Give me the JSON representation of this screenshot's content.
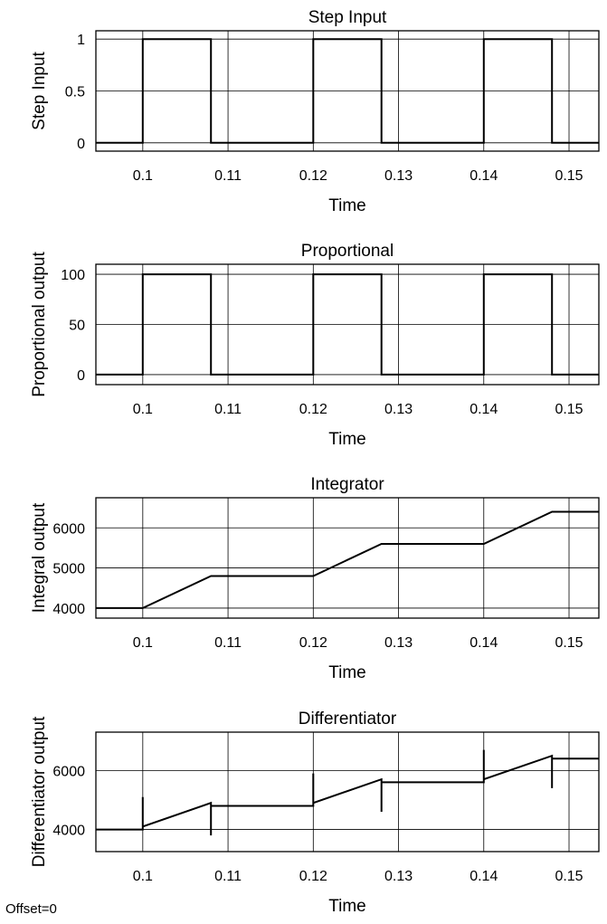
{
  "footnote": "Offset=0",
  "chart_data": [
    {
      "type": "line",
      "title": "Step Input",
      "xlabel": "Time",
      "ylabel": "Step Input",
      "xlim": [
        0.0945,
        0.1535
      ],
      "ylim": [
        -0.08,
        1.08
      ],
      "xticks": [
        0.1,
        0.11,
        0.12,
        0.13,
        0.14,
        0.15
      ],
      "xtick_labels": [
        "0.1",
        "0.11",
        "0.12",
        "0.13",
        "0.14",
        "0.15"
      ],
      "yticks": [
        0,
        0.5,
        1
      ],
      "ytick_labels": [
        "0",
        "0.5",
        "1"
      ],
      "grid": true,
      "series": [
        {
          "x": [
            0.0945,
            0.1,
            0.1,
            0.108,
            0.108,
            0.12,
            0.12,
            0.128,
            0.128,
            0.14,
            0.14,
            0.148,
            0.148,
            0.1535
          ],
          "y": [
            0,
            0,
            1,
            1,
            0,
            0,
            1,
            1,
            0,
            0,
            1,
            1,
            0,
            0
          ]
        }
      ]
    },
    {
      "type": "line",
      "title": "Proportional",
      "xlabel": "Time",
      "ylabel": "Proportional output",
      "xlim": [
        0.0945,
        0.1535
      ],
      "ylim": [
        -10,
        110
      ],
      "xticks": [
        0.1,
        0.11,
        0.12,
        0.13,
        0.14,
        0.15
      ],
      "xtick_labels": [
        "0.1",
        "0.11",
        "0.12",
        "0.13",
        "0.14",
        "0.15"
      ],
      "yticks": [
        0,
        50,
        100
      ],
      "ytick_labels": [
        "0",
        "50",
        "100"
      ],
      "grid": true,
      "series": [
        {
          "x": [
            0.0945,
            0.1,
            0.1,
            0.108,
            0.108,
            0.12,
            0.12,
            0.128,
            0.128,
            0.14,
            0.14,
            0.148,
            0.148,
            0.1535
          ],
          "y": [
            0,
            0,
            100,
            100,
            0,
            0,
            100,
            100,
            0,
            0,
            100,
            100,
            0,
            0
          ]
        }
      ]
    },
    {
      "type": "line",
      "title": "Integrator",
      "xlabel": "Time",
      "ylabel": "Integral output",
      "xlim": [
        0.0945,
        0.1535
      ],
      "ylim": [
        3750,
        6750
      ],
      "xticks": [
        0.1,
        0.11,
        0.12,
        0.13,
        0.14,
        0.15
      ],
      "xtick_labels": [
        "0.1",
        "0.11",
        "0.12",
        "0.13",
        "0.14",
        "0.15"
      ],
      "yticks": [
        4000,
        5000,
        6000
      ],
      "ytick_labels": [
        "4000",
        "5000",
        "6000"
      ],
      "grid": true,
      "series": [
        {
          "x": [
            0.0945,
            0.1,
            0.108,
            0.12,
            0.128,
            0.14,
            0.148,
            0.1535
          ],
          "y": [
            4000,
            4000,
            4800,
            4800,
            5600,
            5600,
            6400,
            6400
          ]
        }
      ]
    },
    {
      "type": "line",
      "title": "Differentiator",
      "xlabel": "Time",
      "ylabel": "Differentiator output",
      "xlim": [
        0.0945,
        0.1535
      ],
      "ylim": [
        3250,
        7300
      ],
      "xticks": [
        0.1,
        0.11,
        0.12,
        0.13,
        0.14,
        0.15
      ],
      "xtick_labels": [
        "0.1",
        "0.11",
        "0.12",
        "0.13",
        "0.14",
        "0.15"
      ],
      "yticks": [
        4000,
        6000
      ],
      "ytick_labels": [
        "4000",
        "6000"
      ],
      "grid": true,
      "series": [
        {
          "x": [
            0.0945,
            0.1,
            0.1,
            0.1,
            0.108,
            0.108,
            0.108,
            0.12,
            0.12,
            0.12,
            0.128,
            0.128,
            0.128,
            0.14,
            0.14,
            0.14,
            0.148,
            0.148,
            0.148,
            0.1535
          ],
          "y": [
            4000,
            4000,
            5100,
            4100,
            4900,
            3800,
            4800,
            4800,
            5900,
            4900,
            5700,
            4600,
            5600,
            5600,
            6700,
            5700,
            6500,
            5400,
            6400,
            6400
          ]
        }
      ]
    }
  ]
}
